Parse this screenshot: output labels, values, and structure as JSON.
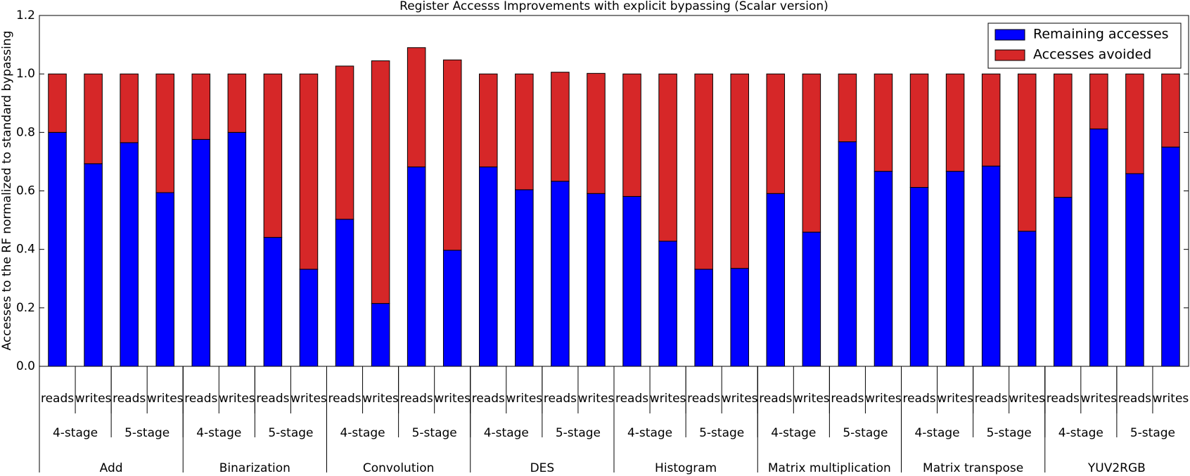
{
  "chart_data": {
    "type": "stacked_bar",
    "title": "Register Accesss Improvements with explicit bypassing (Scalar version)",
    "ylabel": "Accesses to the RF normalized to standard bypassing",
    "categories": [
      "reads",
      "writes",
      "reads",
      "writes",
      "reads",
      "writes",
      "reads",
      "writes",
      "reads",
      "writes",
      "reads",
      "writes",
      "reads",
      "writes",
      "reads",
      "writes",
      "reads",
      "writes",
      "reads",
      "writes",
      "reads",
      "writes",
      "reads",
      "writes",
      "reads",
      "writes",
      "reads",
      "writes",
      "reads",
      "writes",
      "reads",
      "writes"
    ],
    "stages": [
      "4-stage",
      "5-stage",
      "4-stage",
      "5-stage",
      "4-stage",
      "5-stage",
      "4-stage",
      "5-stage",
      "4-stage",
      "5-stage",
      "4-stage",
      "5-stage",
      "4-stage",
      "5-stage",
      "4-stage",
      "5-stage"
    ],
    "groups": [
      "Add",
      "Binarization",
      "Convolution",
      "DES",
      "Histogram",
      "Matrix multiplication",
      "Matrix transpose",
      "YUV2RGB"
    ],
    "series": [
      {
        "name": "Remaining accesses",
        "color": "#0000ff",
        "values": [
          0.8,
          0.693,
          0.765,
          0.594,
          0.776,
          0.8,
          0.441,
          0.332,
          0.503,
          0.215,
          0.682,
          0.397,
          0.682,
          0.604,
          0.633,
          0.591,
          0.581,
          0.428,
          0.332,
          0.335,
          0.591,
          0.459,
          0.768,
          0.667,
          0.612,
          0.667,
          0.685,
          0.462,
          0.578,
          0.812,
          0.659,
          0.75
        ]
      },
      {
        "name": "Accesses avoided",
        "color": "#d62728",
        "values": [
          0.2,
          0.307,
          0.235,
          0.406,
          0.224,
          0.2,
          0.559,
          0.668,
          0.524,
          0.83,
          0.408,
          0.651,
          0.318,
          0.396,
          0.373,
          0.411,
          0.419,
          0.572,
          0.668,
          0.665,
          0.409,
          0.541,
          0.232,
          0.333,
          0.388,
          0.333,
          0.315,
          0.538,
          0.422,
          0.188,
          0.341,
          0.25
        ]
      }
    ],
    "ylim": [
      0,
      1.2
    ],
    "yticks": [
      {
        "value": 0,
        "label": "0.0"
      },
      {
        "value": 0.2,
        "label": "0.2"
      },
      {
        "value": 0.4,
        "label": "0.4"
      },
      {
        "value": 0.6,
        "label": "0.6"
      },
      {
        "value": 0.8,
        "label": "0.8"
      },
      {
        "value": 1,
        "label": "1.0"
      },
      {
        "value": 1.2,
        "label": "1.2"
      }
    ],
    "legend": "upper right"
  }
}
